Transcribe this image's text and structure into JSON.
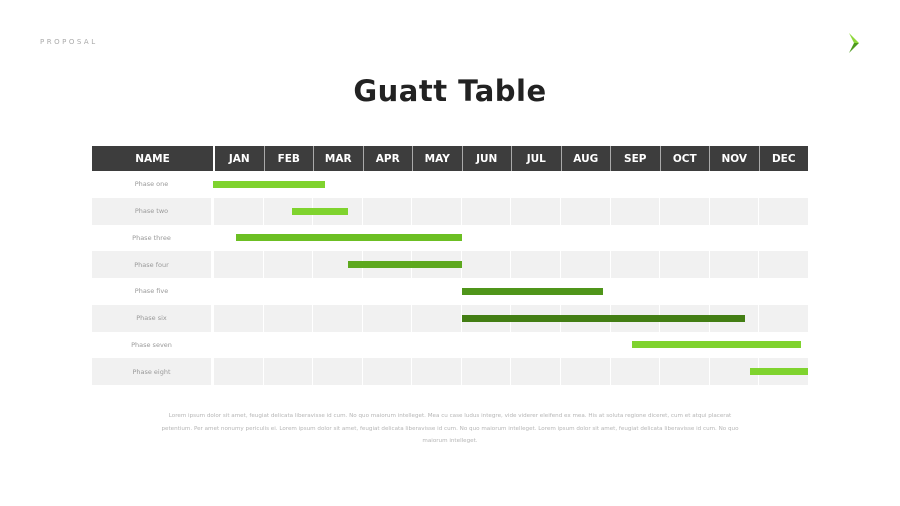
{
  "header": {
    "label": "PROPOSAL",
    "logo_icon": "green-chevron-logo"
  },
  "title": "Guatt Table",
  "table": {
    "name_header": "NAME",
    "months": [
      "JAN",
      "FEB",
      "MAR",
      "APR",
      "MAY",
      "JUN",
      "JUL",
      "AUG",
      "SEP",
      "OCT",
      "NOV",
      "DEC"
    ],
    "phases": [
      {
        "name": "Phase one",
        "start_month": 0,
        "end_month": 2.25,
        "color": "#7fd32e"
      },
      {
        "name": "Phase two",
        "start_month": 1.6,
        "end_month": 2.72,
        "color": "#7fd32e"
      },
      {
        "name": "Phase three",
        "start_month": 0.46,
        "end_month": 5.03,
        "color": "#6cbf23"
      },
      {
        "name": "Phase four",
        "start_month": 2.72,
        "end_month": 5.03,
        "color": "#5da81e"
      },
      {
        "name": "Phase five",
        "start_month": 5.03,
        "end_month": 7.87,
        "color": "#4f951a"
      },
      {
        "name": "Phase six",
        "start_month": 5.03,
        "end_month": 10.72,
        "color": "#437e14"
      },
      {
        "name": "Phase seven",
        "start_month": 8.45,
        "end_month": 11.85,
        "color": "#7fd32e"
      },
      {
        "name": "Phase eight",
        "start_month": 10.83,
        "end_month": 12,
        "color": "#7fd32e"
      }
    ]
  },
  "body_text": "Lorem ipsum dolor sit amet, feugiat delicata liberavisse id cum. No quo maiorum intelleget. Mea cu case ludus integre, vide viderer eleifend ex mea. His at soluta regione diceret, cum et atqui placerat petentium. Per amet nonumy periculis ei. Lorem ipsum dolor sit amet, feugiat delicata liberavisse id cum. No quo maiorum intelleget. Lorem ipsum dolor sit amet, feugiat delicata liberavisse id cum. No quo maiorum intelleget."
}
